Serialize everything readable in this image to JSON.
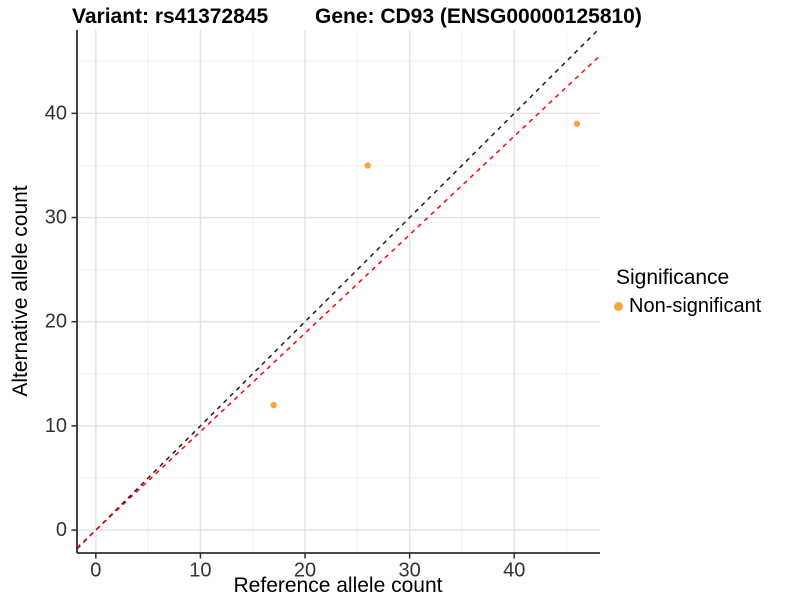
{
  "header": {
    "variant_title": "Variant: rs41372845",
    "gene_title": "Gene: CD93 (ENSG00000125810)"
  },
  "axes": {
    "x_label": "Reference allele count",
    "y_label": "Alternative allele count"
  },
  "legend": {
    "title": "Significance",
    "items": [
      {
        "label": "Non-significant",
        "color": "#FAA53C"
      }
    ]
  },
  "chart_data": {
    "type": "scatter",
    "title": "Variant: rs41372845 | Gene: CD93 (ENSG00000125810)",
    "xlabel": "Reference allele count",
    "ylabel": "Alternative allele count",
    "xlim": [
      -1.8,
      48.2
    ],
    "ylim": [
      -2.2,
      48
    ],
    "x_ticks": [
      0,
      10,
      20,
      30,
      40
    ],
    "y_ticks": [
      0,
      10,
      20,
      30,
      40
    ],
    "x_minor_ticks": [
      5,
      15,
      25,
      35,
      45
    ],
    "y_minor_ticks": [
      5,
      15,
      25,
      35,
      45
    ],
    "grid": true,
    "legend_position": "right",
    "series": [
      {
        "name": "Non-significant",
        "color": "#FAA53C",
        "points": [
          [
            17,
            12
          ],
          [
            26,
            35
          ],
          [
            46,
            39
          ]
        ]
      }
    ],
    "lines": [
      {
        "name": "identity",
        "slope": 1,
        "intercept": 0,
        "color": "#1C1C1C",
        "style": "dashed"
      },
      {
        "name": "regression-fit",
        "slope": 0.945,
        "intercept": 0,
        "color": "#FF0000",
        "style": "dashed"
      }
    ],
    "colors": {
      "major_grid": "#E2E2E2",
      "minor_grid": "#F0F0F0",
      "axis_line": "#2F2F2F",
      "tick_label": "#333333"
    }
  }
}
